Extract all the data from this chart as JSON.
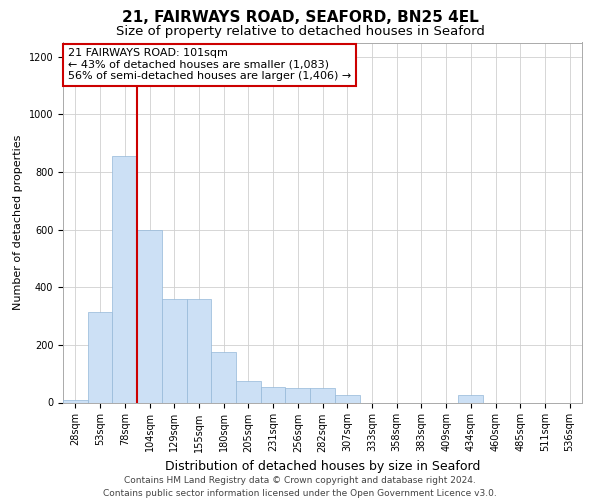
{
  "title1": "21, FAIRWAYS ROAD, SEAFORD, BN25 4EL",
  "title2": "Size of property relative to detached houses in Seaford",
  "xlabel": "Distribution of detached houses by size in Seaford",
  "ylabel": "Number of detached properties",
  "annotation_line1": "21 FAIRWAYS ROAD: 101sqm",
  "annotation_line2": "← 43% of detached houses are smaller (1,083)",
  "annotation_line3": "56% of semi-detached houses are larger (1,406) →",
  "bar_categories": [
    "28sqm",
    "53sqm",
    "78sqm",
    "104sqm",
    "129sqm",
    "155sqm",
    "180sqm",
    "205sqm",
    "231sqm",
    "256sqm",
    "282sqm",
    "307sqm",
    "333sqm",
    "358sqm",
    "383sqm",
    "409sqm",
    "434sqm",
    "460sqm",
    "485sqm",
    "511sqm",
    "536sqm"
  ],
  "bar_values": [
    10,
    315,
    855,
    600,
    360,
    360,
    175,
    75,
    55,
    50,
    50,
    25,
    0,
    0,
    0,
    0,
    25,
    0,
    0,
    0,
    0
  ],
  "bar_color": "#cce0f5",
  "bar_edge_color": "#94b8d8",
  "vline_color": "#cc0000",
  "vline_bin_index": 3,
  "ylim": [
    0,
    1250
  ],
  "yticks": [
    0,
    200,
    400,
    600,
    800,
    1000,
    1200
  ],
  "grid_color": "#d0d0d0",
  "background_color": "#ffffff",
  "annotation_box_edge": "#cc0000",
  "footer_line1": "Contains HM Land Registry data © Crown copyright and database right 2024.",
  "footer_line2": "Contains public sector information licensed under the Open Government Licence v3.0.",
  "title1_fontsize": 11,
  "title2_fontsize": 9.5,
  "xlabel_fontsize": 9,
  "ylabel_fontsize": 8,
  "tick_fontsize": 7,
  "annotation_fontsize": 8,
  "footer_fontsize": 6.5
}
